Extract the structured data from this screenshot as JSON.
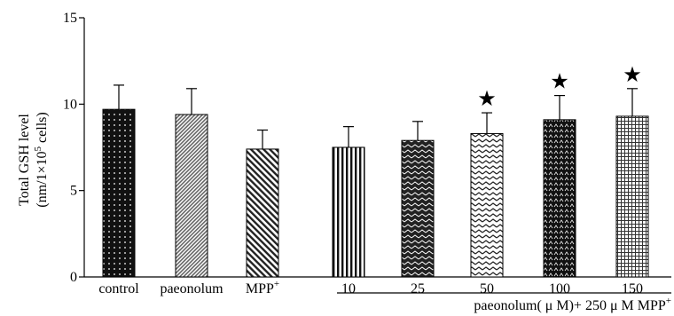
{
  "chart_data": {
    "type": "bar",
    "title": "",
    "ylabel_line1": "Total GSH level",
    "ylabel_line2": "(nm/1×10",
    "ylabel_line2_sup": "5",
    "ylabel_line2_end": " cells)",
    "ylim": [
      0,
      15
    ],
    "yticks": [
      "0",
      "5",
      "10",
      "15"
    ],
    "ytick_values": [
      0,
      5,
      10,
      15
    ],
    "grid": false,
    "legend": "none",
    "group_label": "paeonolum( μ M)+ 250 μ M MPP",
    "group_label_sup": "+",
    "categories": [
      {
        "label": "control",
        "sup": ""
      },
      {
        "label": "paeonolum",
        "sup": ""
      },
      {
        "label": "MPP",
        "sup": "+"
      },
      {
        "label": "10",
        "sup": ""
      },
      {
        "label": "25",
        "sup": ""
      },
      {
        "label": "50",
        "sup": ""
      },
      {
        "label": "100",
        "sup": ""
      },
      {
        "label": "150",
        "sup": ""
      }
    ],
    "values": [
      9.7,
      9.4,
      7.4,
      7.5,
      7.9,
      8.3,
      9.1,
      9.3
    ],
    "errors": [
      1.4,
      1.5,
      1.1,
      1.2,
      1.1,
      1.2,
      1.4,
      1.6
    ],
    "significance": [
      false,
      false,
      false,
      false,
      false,
      true,
      true,
      true
    ],
    "significance_marker": "★",
    "patterns": [
      "dots-dark",
      "diagonal-fine",
      "diagonal-coarse",
      "vertical",
      "zigzag-dark",
      "zigzag-light",
      "checker-dark",
      "grid-light"
    ]
  }
}
